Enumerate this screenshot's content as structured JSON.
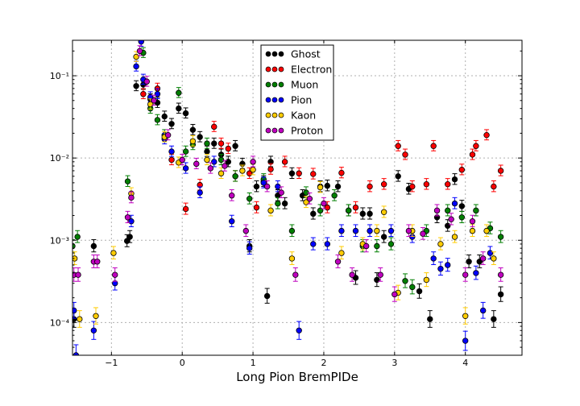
{
  "chart_data": {
    "type": "scatter",
    "title": "",
    "xlabel": "Long Pion BremPIDe",
    "ylabel": "",
    "xlim": [
      -1.55,
      4.8
    ],
    "ylim": [
      4e-05,
      0.27
    ],
    "yscale": "log",
    "grid": true,
    "legend_position": "top-center",
    "x_ticks": [
      -1,
      0,
      1,
      2,
      3,
      4
    ],
    "x_tick_labels": [
      "−1",
      "0",
      "1",
      "2",
      "3",
      "4"
    ],
    "y_ticks": [
      0.0001,
      0.001,
      0.01,
      0.1
    ],
    "y_tick_labels": [
      "10⁻⁴",
      "10⁻³",
      "10⁻²",
      "10⁻¹"
    ],
    "series": [
      {
        "name": "Ghost",
        "color": "#000000",
        "points": [
          {
            "x": -1.53,
            "y": 0.00011
          },
          {
            "x": -1.25,
            "y": 0.00085
          },
          {
            "x": -0.78,
            "y": 0.00098
          },
          {
            "x": -0.74,
            "y": 0.0011
          },
          {
            "x": -0.65,
            "y": 0.075
          },
          {
            "x": -0.55,
            "y": 0.078
          },
          {
            "x": -0.45,
            "y": 0.052
          },
          {
            "x": -0.35,
            "y": 0.047
          },
          {
            "x": -0.25,
            "y": 0.032
          },
          {
            "x": -0.15,
            "y": 0.026
          },
          {
            "x": -0.05,
            "y": 0.04
          },
          {
            "x": 0.05,
            "y": 0.035
          },
          {
            "x": 0.15,
            "y": 0.022
          },
          {
            "x": 0.25,
            "y": 0.018
          },
          {
            "x": 0.35,
            "y": 0.012
          },
          {
            "x": 0.45,
            "y": 0.015
          },
          {
            "x": 0.55,
            "y": 0.011
          },
          {
            "x": 0.65,
            "y": 0.009
          },
          {
            "x": 0.75,
            "y": 0.014
          },
          {
            "x": 0.85,
            "y": 0.0085
          },
          {
            "x": 0.95,
            "y": 0.00085
          },
          {
            "x": 1.05,
            "y": 0.0045
          },
          {
            "x": 1.15,
            "y": 0.0052
          },
          {
            "x": 1.2,
            "y": 0.00021
          },
          {
            "x": 1.25,
            "y": 0.009
          },
          {
            "x": 1.35,
            "y": 0.0035
          },
          {
            "x": 1.45,
            "y": 0.0028
          },
          {
            "x": 1.55,
            "y": 0.0065
          },
          {
            "x": 1.7,
            "y": 0.0035
          },
          {
            "x": 1.85,
            "y": 0.0021
          },
          {
            "x": 1.95,
            "y": 0.0045
          },
          {
            "x": 2.05,
            "y": 0.0046
          },
          {
            "x": 2.2,
            "y": 0.0045
          },
          {
            "x": 2.35,
            "y": 0.0023
          },
          {
            "x": 2.45,
            "y": 0.00035
          },
          {
            "x": 2.55,
            "y": 0.0021
          },
          {
            "x": 2.65,
            "y": 0.0021
          },
          {
            "x": 2.75,
            "y": 0.00033
          },
          {
            "x": 2.85,
            "y": 0.0011
          },
          {
            "x": 3.05,
            "y": 0.006
          },
          {
            "x": 3.2,
            "y": 0.0042
          },
          {
            "x": 3.35,
            "y": 0.00024
          },
          {
            "x": 3.5,
            "y": 0.00011
          },
          {
            "x": 3.6,
            "y": 0.0019
          },
          {
            "x": 3.75,
            "y": 0.0015
          },
          {
            "x": 3.85,
            "y": 0.0055
          },
          {
            "x": 3.95,
            "y": 0.0026
          },
          {
            "x": 4.05,
            "y": 0.00055
          },
          {
            "x": 4.2,
            "y": 0.00055
          },
          {
            "x": 4.4,
            "y": 0.00011
          },
          {
            "x": 4.5,
            "y": 0.00022
          }
        ]
      },
      {
        "name": "Electron",
        "color": "#ff0000",
        "points": [
          {
            "x": -0.55,
            "y": 0.06
          },
          {
            "x": -0.35,
            "y": 0.07
          },
          {
            "x": -0.15,
            "y": 0.0095
          },
          {
            "x": 0.05,
            "y": 0.0024
          },
          {
            "x": 0.25,
            "y": 0.0047
          },
          {
            "x": 0.45,
            "y": 0.024
          },
          {
            "x": 0.55,
            "y": 0.015
          },
          {
            "x": 0.65,
            "y": 0.013
          },
          {
            "x": 0.75,
            "y": 0.006
          },
          {
            "x": 0.95,
            "y": 0.0065
          },
          {
            "x": 1.05,
            "y": 0.0025
          },
          {
            "x": 1.25,
            "y": 0.0073
          },
          {
            "x": 1.45,
            "y": 0.009
          },
          {
            "x": 1.65,
            "y": 0.0065
          },
          {
            "x": 1.85,
            "y": 0.0064
          },
          {
            "x": 2.05,
            "y": 0.0025
          },
          {
            "x": 2.25,
            "y": 0.0066
          },
          {
            "x": 2.45,
            "y": 0.0025
          },
          {
            "x": 2.65,
            "y": 0.0045
          },
          {
            "x": 2.85,
            "y": 0.0048
          },
          {
            "x": 3.05,
            "y": 0.014
          },
          {
            "x": 3.15,
            "y": 0.011
          },
          {
            "x": 3.25,
            "y": 0.0045
          },
          {
            "x": 3.45,
            "y": 0.0048
          },
          {
            "x": 3.55,
            "y": 0.014
          },
          {
            "x": 3.75,
            "y": 0.0048
          },
          {
            "x": 3.95,
            "y": 0.0072
          },
          {
            "x": 4.1,
            "y": 0.011
          },
          {
            "x": 4.15,
            "y": 0.014
          },
          {
            "x": 4.3,
            "y": 0.019
          },
          {
            "x": 4.4,
            "y": 0.0045
          },
          {
            "x": 4.5,
            "y": 0.007
          }
        ]
      },
      {
        "name": "Muon",
        "color": "#007f00",
        "points": [
          {
            "x": -1.55,
            "y": 0.00085
          },
          {
            "x": -1.48,
            "y": 0.0011
          },
          {
            "x": -0.77,
            "y": 0.0052
          },
          {
            "x": -0.55,
            "y": 0.19
          },
          {
            "x": -0.45,
            "y": 0.04
          },
          {
            "x": -0.35,
            "y": 0.029
          },
          {
            "x": -0.25,
            "y": 0.019
          },
          {
            "x": -0.05,
            "y": 0.062
          },
          {
            "x": 0.05,
            "y": 0.012
          },
          {
            "x": 0.15,
            "y": 0.0145
          },
          {
            "x": 0.35,
            "y": 0.015
          },
          {
            "x": 0.55,
            "y": 0.0095
          },
          {
            "x": 0.75,
            "y": 0.006
          },
          {
            "x": 0.95,
            "y": 0.0032
          },
          {
            "x": 1.15,
            "y": 0.0055
          },
          {
            "x": 1.35,
            "y": 0.0028
          },
          {
            "x": 1.55,
            "y": 0.0013
          },
          {
            "x": 1.75,
            "y": 0.0038
          },
          {
            "x": 1.95,
            "y": 0.0023
          },
          {
            "x": 2.15,
            "y": 0.0035
          },
          {
            "x": 2.35,
            "y": 0.0023
          },
          {
            "x": 2.55,
            "y": 0.00085
          },
          {
            "x": 2.75,
            "y": 0.00085
          },
          {
            "x": 2.95,
            "y": 0.0009
          },
          {
            "x": 3.15,
            "y": 0.00032
          },
          {
            "x": 3.25,
            "y": 0.00027
          },
          {
            "x": 3.45,
            "y": 0.0013
          },
          {
            "x": 3.75,
            "y": 0.0023
          },
          {
            "x": 3.95,
            "y": 0.0019
          },
          {
            "x": 4.15,
            "y": 0.0023
          },
          {
            "x": 4.35,
            "y": 0.0014
          },
          {
            "x": 4.5,
            "y": 0.0011
          }
        ]
      },
      {
        "name": "Pion",
        "color": "#0000ff",
        "points": [
          {
            "x": -1.53,
            "y": 0.00014
          },
          {
            "x": -1.5,
            "y": 4e-05
          },
          {
            "x": -1.25,
            "y": 8e-05
          },
          {
            "x": -0.95,
            "y": 0.0003
          },
          {
            "x": -0.72,
            "y": 0.0017
          },
          {
            "x": -0.65,
            "y": 0.13
          },
          {
            "x": -0.58,
            "y": 0.26
          },
          {
            "x": -0.55,
            "y": 0.09
          },
          {
            "x": -0.45,
            "y": 0.055
          },
          {
            "x": -0.35,
            "y": 0.06
          },
          {
            "x": -0.25,
            "y": 0.017
          },
          {
            "x": -0.15,
            "y": 0.012
          },
          {
            "x": 0.05,
            "y": 0.0075
          },
          {
            "x": 0.25,
            "y": 0.0038
          },
          {
            "x": 0.45,
            "y": 0.009
          },
          {
            "x": 0.7,
            "y": 0.0017
          },
          {
            "x": 0.95,
            "y": 0.0008
          },
          {
            "x": 1.15,
            "y": 0.005
          },
          {
            "x": 1.35,
            "y": 0.0045
          },
          {
            "x": 1.65,
            "y": 8e-05
          },
          {
            "x": 1.85,
            "y": 0.0009
          },
          {
            "x": 2.05,
            "y": 0.0009
          },
          {
            "x": 2.25,
            "y": 0.0013
          },
          {
            "x": 2.45,
            "y": 0.0013
          },
          {
            "x": 2.65,
            "y": 0.0013
          },
          {
            "x": 2.95,
            "y": 0.0013
          },
          {
            "x": 3.25,
            "y": 0.0011
          },
          {
            "x": 3.55,
            "y": 0.0006
          },
          {
            "x": 3.65,
            "y": 0.00045
          },
          {
            "x": 3.75,
            "y": 0.0005
          },
          {
            "x": 3.85,
            "y": 0.0028
          },
          {
            "x": 4.0,
            "y": 6e-05
          },
          {
            "x": 4.15,
            "y": 0.0004
          },
          {
            "x": 4.25,
            "y": 0.00014
          },
          {
            "x": 4.35,
            "y": 0.0007
          }
        ]
      },
      {
        "name": "Kaon",
        "color": "#ffcc00",
        "points": [
          {
            "x": -1.52,
            "y": 0.0006
          },
          {
            "x": -1.45,
            "y": 0.00011
          },
          {
            "x": -1.22,
            "y": 0.00012
          },
          {
            "x": -0.97,
            "y": 0.0007
          },
          {
            "x": -0.72,
            "y": 0.0037
          },
          {
            "x": -0.65,
            "y": 0.17
          },
          {
            "x": -0.45,
            "y": 0.045
          },
          {
            "x": -0.25,
            "y": 0.018
          },
          {
            "x": -0.05,
            "y": 0.0088
          },
          {
            "x": 0.15,
            "y": 0.016
          },
          {
            "x": 0.35,
            "y": 0.0095
          },
          {
            "x": 0.55,
            "y": 0.0065
          },
          {
            "x": 0.85,
            "y": 0.007
          },
          {
            "x": 1.0,
            "y": 0.0072
          },
          {
            "x": 1.25,
            "y": 0.0023
          },
          {
            "x": 1.55,
            "y": 0.0006
          },
          {
            "x": 1.75,
            "y": 0.0029
          },
          {
            "x": 1.95,
            "y": 0.0044
          },
          {
            "x": 2.25,
            "y": 0.0007
          },
          {
            "x": 2.55,
            "y": 0.0009
          },
          {
            "x": 2.75,
            "y": 0.0013
          },
          {
            "x": 2.85,
            "y": 0.0022
          },
          {
            "x": 3.05,
            "y": 0.00023
          },
          {
            "x": 3.25,
            "y": 0.0013
          },
          {
            "x": 3.45,
            "y": 0.00033
          },
          {
            "x": 3.65,
            "y": 0.0009
          },
          {
            "x": 3.85,
            "y": 0.0011
          },
          {
            "x": 4.0,
            "y": 0.00012
          },
          {
            "x": 4.1,
            "y": 0.0013
          },
          {
            "x": 4.3,
            "y": 0.0013
          },
          {
            "x": 4.4,
            "y": 0.0006
          }
        ]
      },
      {
        "name": "Proton",
        "color": "#bf00bf",
        "points": [
          {
            "x": -1.53,
            "y": 0.00038
          },
          {
            "x": -1.47,
            "y": 0.00038
          },
          {
            "x": -1.25,
            "y": 0.00055
          },
          {
            "x": -1.2,
            "y": 0.00055
          },
          {
            "x": -0.95,
            "y": 0.00038
          },
          {
            "x": -0.77,
            "y": 0.0019
          },
          {
            "x": -0.72,
            "y": 0.0033
          },
          {
            "x": -0.6,
            "y": 0.2
          },
          {
            "x": -0.5,
            "y": 0.085
          },
          {
            "x": -0.4,
            "y": 0.05
          },
          {
            "x": -0.2,
            "y": 0.019
          },
          {
            "x": 0.0,
            "y": 0.0095
          },
          {
            "x": 0.2,
            "y": 0.0085
          },
          {
            "x": 0.4,
            "y": 0.0075
          },
          {
            "x": 0.6,
            "y": 0.008
          },
          {
            "x": 0.7,
            "y": 0.0035
          },
          {
            "x": 0.9,
            "y": 0.0013
          },
          {
            "x": 1.0,
            "y": 0.009
          },
          {
            "x": 1.2,
            "y": 0.0045
          },
          {
            "x": 1.4,
            "y": 0.0038
          },
          {
            "x": 1.6,
            "y": 0.00038
          },
          {
            "x": 1.8,
            "y": 0.0032
          },
          {
            "x": 2.0,
            "y": 0.0028
          },
          {
            "x": 2.2,
            "y": 0.00055
          },
          {
            "x": 2.4,
            "y": 0.00038
          },
          {
            "x": 2.6,
            "y": 0.00085
          },
          {
            "x": 2.8,
            "y": 0.00038
          },
          {
            "x": 3.0,
            "y": 0.00022
          },
          {
            "x": 3.2,
            "y": 0.0013
          },
          {
            "x": 3.4,
            "y": 0.0012
          },
          {
            "x": 3.6,
            "y": 0.0023
          },
          {
            "x": 3.8,
            "y": 0.0018
          },
          {
            "x": 4.0,
            "y": 0.00038
          },
          {
            "x": 4.1,
            "y": 0.0017
          },
          {
            "x": 4.25,
            "y": 0.0006
          },
          {
            "x": 4.5,
            "y": 0.00038
          }
        ]
      }
    ]
  }
}
